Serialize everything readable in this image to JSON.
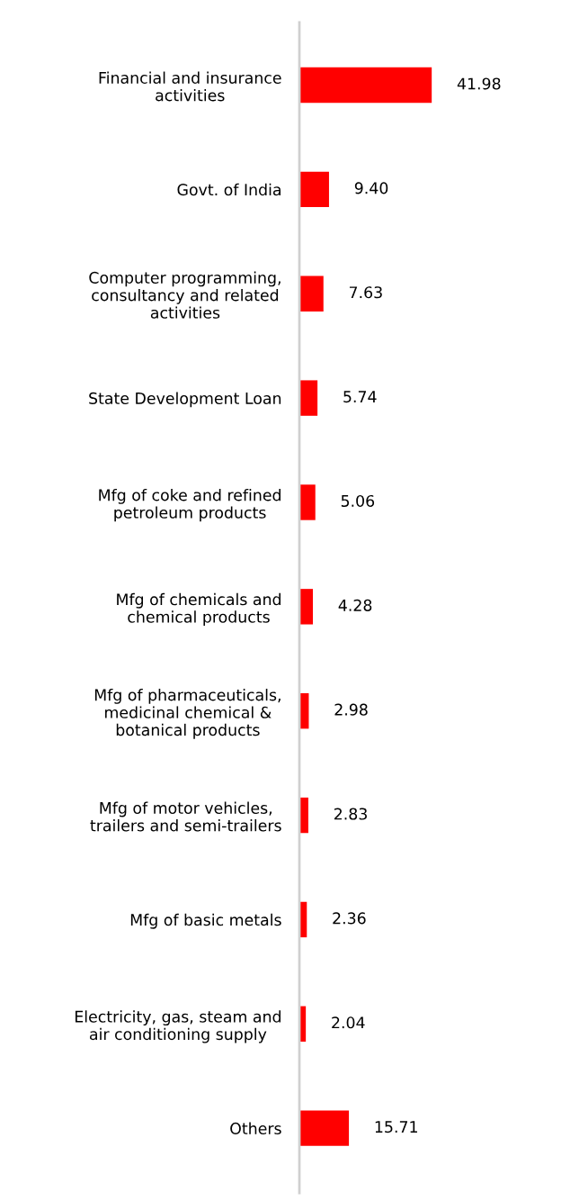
{
  "chart_data": {
    "type": "bar",
    "orientation": "horizontal",
    "categories": [
      "Financial and insurance activities",
      "Govt. of India",
      "Computer programming, consultancy and related activities",
      "State Development Loan",
      "Mfg of coke and refined petroleum products",
      "Mfg of chemicals and chemical products",
      "Mfg of pharmaceuticals, medicinal chemical & botanical products",
      "Mfg of motor vehicles, trailers and semi-trailers",
      "Mfg of basic metals",
      "Electricity, gas, steam and air conditioning supply",
      "Others"
    ],
    "values": [
      41.98,
      9.4,
      7.63,
      5.74,
      5.06,
      4.28,
      2.98,
      2.83,
      2.36,
      2.04,
      15.71
    ],
    "value_labels": [
      "41.98",
      "9.40",
      "7.63",
      "5.74",
      "5.06",
      "4.28",
      "2.98",
      "2.83",
      "2.36",
      "2.04",
      "15.71"
    ],
    "color": "#ff0000",
    "grid": false,
    "legend": false
  }
}
